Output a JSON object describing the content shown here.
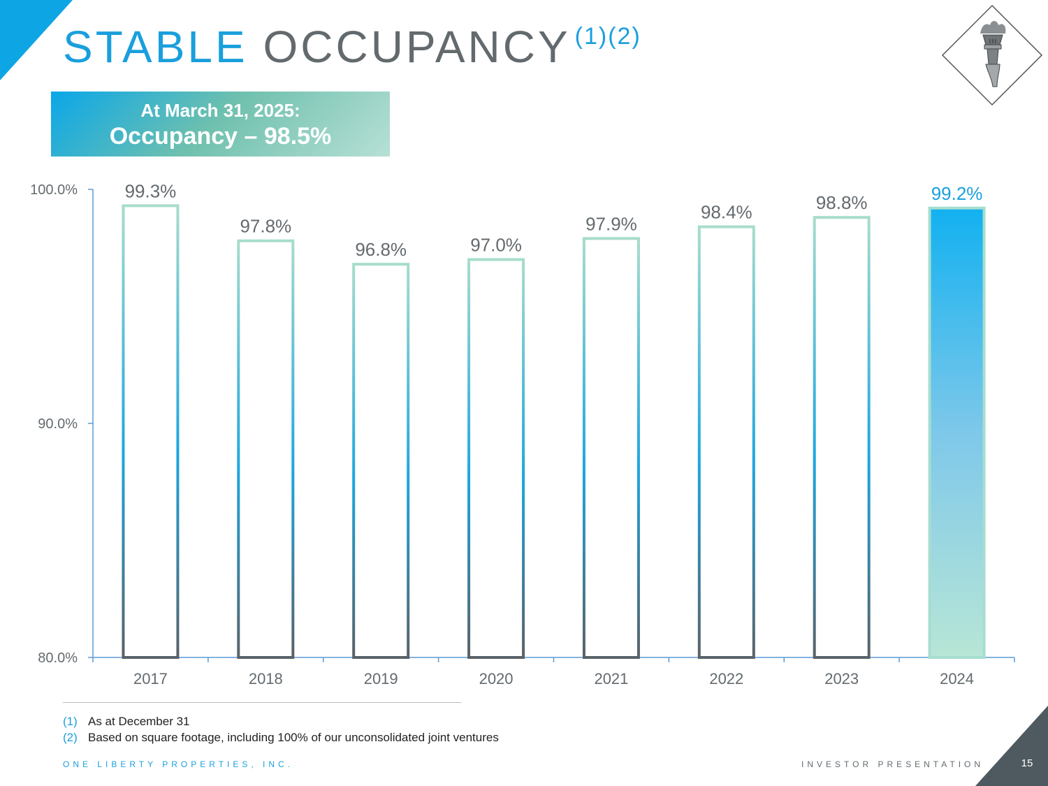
{
  "slide": {
    "title_part1": "STABLE",
    "title_part2": "OCCUPANCY",
    "title_refs": "(1)(2)",
    "callout_line1": "At March 31, 2025:",
    "callout_line2": "Occupancy – 98.5%",
    "logo_icon": "statue-of-liberty-torch-icon",
    "footnotes": [
      {
        "num": "(1)",
        "text": "As at December 31"
      },
      {
        "num": "(2)",
        "text": "Based on square footage, including 100% of our unconsolidated joint ventures"
      }
    ],
    "footer_left": "ONE LIBERTY PROPERTIES, INC.",
    "footer_right": "INVESTOR PRESENTATION",
    "page_number": "15",
    "colors": {
      "accent": "#1a9fdc",
      "gray": "#636a6e",
      "teal": "#a8d8cc"
    }
  },
  "chart_data": {
    "type": "bar",
    "title": "",
    "xlabel": "",
    "ylabel": "",
    "categories": [
      "2017",
      "2018",
      "2019",
      "2020",
      "2021",
      "2022",
      "2023",
      "2024"
    ],
    "values": [
      99.3,
      97.8,
      96.8,
      97.0,
      97.9,
      98.4,
      98.8,
      99.2
    ],
    "value_labels": [
      "99.3%",
      "97.8%",
      "96.8%",
      "97.0%",
      "97.9%",
      "98.4%",
      "98.8%",
      "99.2%"
    ],
    "highlighted_category": "2024",
    "ylim": [
      80,
      100
    ],
    "yticks": [
      80,
      90,
      100
    ],
    "ytick_labels": [
      "80.0%",
      "90.0%",
      "100.0%"
    ],
    "grid": false,
    "legend": "none"
  }
}
